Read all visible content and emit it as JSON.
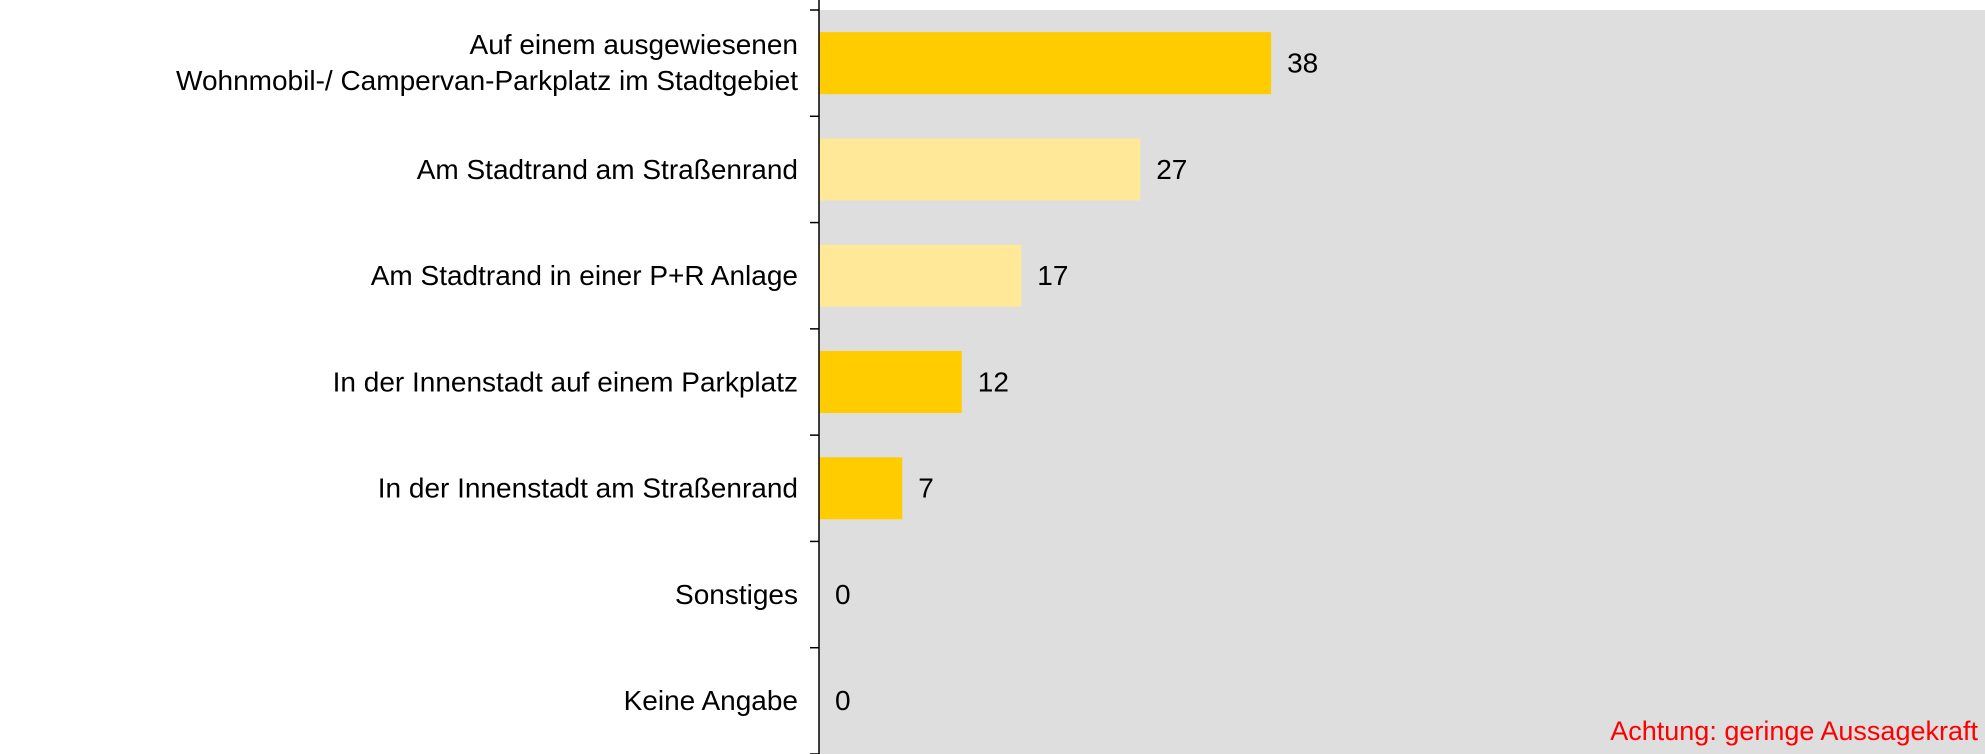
{
  "chart_data": {
    "type": "bar",
    "orientation": "horizontal",
    "categories": [
      "Auf einem ausgewiesenen\nWohnmobil-/ Campervan-Parkplatz im Stadtgebiet",
      "Am Stadtrand am Straßenrand",
      "Am Stadtrand in einer P+R Anlage",
      "In der Innenstadt auf einem Parkplatz",
      "In der Innenstadt am Straßenrand",
      "Sonstiges",
      "Keine Angabe"
    ],
    "values": [
      38,
      27,
      17,
      12,
      7,
      0,
      0
    ],
    "colors": [
      "#ffcc00",
      "#ffe999",
      "#ffe999",
      "#ffcc00",
      "#ffcc00",
      "#ffcc00",
      "#ffcc00"
    ],
    "xlim": [
      0,
      98
    ],
    "annotation": "Achtung: geringe Aussagekraft"
  }
}
